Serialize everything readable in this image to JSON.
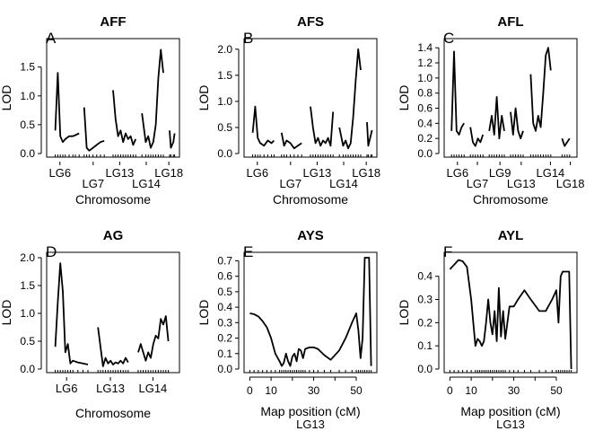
{
  "chart_data": [
    {
      "type": "line",
      "title": "AFF",
      "letter": "A",
      "xlabel": "Chromosome",
      "ylabel": "LOD",
      "ylim": [
        0,
        1.9
      ],
      "yticks": [
        "0.0",
        "0.5",
        "1.0",
        "1.5"
      ],
      "xlim": [
        0,
        10
      ],
      "xtick_labels": [
        "LG6",
        "LG7",
        "LG13",
        "LG14",
        "LG18"
      ],
      "series": [
        {
          "chromosome": "LG6",
          "x": [
            0.4,
            0.6,
            0.8,
            1.0,
            1.2,
            1.5,
            1.8,
            2.0,
            2.3
          ],
          "y": [
            0.4,
            1.4,
            0.3,
            0.2,
            0.25,
            0.3,
            0.3,
            0.32,
            0.35
          ]
        },
        {
          "chromosome": "LG7",
          "x": [
            2.7,
            2.9,
            3.1,
            3.4,
            3.7,
            4.0,
            4.3
          ],
          "y": [
            0.8,
            0.1,
            0.05,
            0.1,
            0.15,
            0.2,
            0.22
          ]
        },
        {
          "chromosome": "LG13",
          "x": [
            5.0,
            5.2,
            5.4,
            5.6,
            5.8,
            6.0,
            6.2,
            6.4,
            6.6,
            6.8
          ],
          "y": [
            1.1,
            0.6,
            0.3,
            0.4,
            0.2,
            0.35,
            0.25,
            0.3,
            0.15,
            0.25
          ]
        },
        {
          "chromosome": "LG14",
          "x": [
            7.3,
            7.6,
            7.8,
            8.0,
            8.2,
            8.4,
            8.6,
            8.8,
            9.0
          ],
          "y": [
            0.7,
            0.2,
            0.3,
            0.1,
            0.2,
            0.5,
            1.3,
            1.8,
            1.4
          ]
        },
        {
          "chromosome": "LG18",
          "x": [
            9.5,
            9.6,
            9.8,
            9.9
          ],
          "y": [
            0.4,
            0.1,
            0.2,
            0.35
          ]
        }
      ]
    },
    {
      "type": "line",
      "title": "AFS",
      "letter": "B",
      "xlabel": "Chromosome",
      "ylabel": "LOD",
      "ylim": [
        0,
        2.1
      ],
      "yticks": [
        "0.0",
        "0.5",
        "1.0",
        "1.5",
        "2.0"
      ],
      "xlim": [
        0,
        10
      ],
      "xtick_labels": [
        "LG6",
        "LG7",
        "LG13",
        "LG14",
        "LG18"
      ],
      "series": [
        {
          "chromosome": "LG6",
          "x": [
            0.4,
            0.6,
            0.8,
            1.0,
            1.3,
            1.6,
            1.9,
            2.1
          ],
          "y": [
            0.4,
            0.9,
            0.3,
            0.2,
            0.15,
            0.25,
            0.2,
            0.25
          ]
        },
        {
          "chromosome": "LG7",
          "x": [
            2.7,
            2.9,
            3.1,
            3.4,
            3.7,
            4.0,
            4.3
          ],
          "y": [
            0.4,
            0.15,
            0.25,
            0.2,
            0.1,
            0.15,
            0.2
          ]
        },
        {
          "chromosome": "LG13",
          "x": [
            5.0,
            5.2,
            5.4,
            5.6,
            5.8,
            6.0,
            6.2,
            6.4,
            6.6,
            6.8
          ],
          "y": [
            0.9,
            0.5,
            0.2,
            0.3,
            0.15,
            0.25,
            0.2,
            0.3,
            0.15,
            0.8
          ]
        },
        {
          "chromosome": "LG14",
          "x": [
            7.3,
            7.6,
            7.8,
            8.0,
            8.2,
            8.4,
            8.6,
            8.8,
            9.0
          ],
          "y": [
            0.5,
            0.15,
            0.25,
            0.1,
            0.2,
            0.7,
            1.4,
            2.0,
            1.6
          ]
        },
        {
          "chromosome": "LG18",
          "x": [
            9.5,
            9.6,
            9.8,
            9.9
          ],
          "y": [
            0.6,
            0.15,
            0.35,
            0.45
          ]
        }
      ]
    },
    {
      "type": "line",
      "title": "AFL",
      "letter": "C",
      "xlabel": "Chromosome",
      "ylabel": "LOD",
      "ylim": [
        0,
        1.45
      ],
      "yticks": [
        "0.0",
        "0.2",
        "0.4",
        "0.6",
        "0.8",
        "1.0",
        "1.2",
        "1.4"
      ],
      "xlim": [
        0,
        10
      ],
      "xtick_labels": [
        "LG6",
        "LG7",
        "LG9",
        "LG13",
        "LG14",
        "LG18"
      ],
      "series": [
        {
          "chromosome": "LG6",
          "x": [
            0.3,
            0.5,
            0.7,
            0.9,
            1.1,
            1.3
          ],
          "y": [
            0.3,
            1.35,
            0.3,
            0.25,
            0.35,
            0.4
          ]
        },
        {
          "chromosome": "LG7",
          "x": [
            1.8,
            2.0,
            2.2,
            2.4,
            2.6,
            2.8
          ],
          "y": [
            0.35,
            0.15,
            0.1,
            0.2,
            0.15,
            0.25
          ]
        },
        {
          "chromosome": "LG9",
          "x": [
            3.3,
            3.5,
            3.7,
            3.9,
            4.1,
            4.3,
            4.5
          ],
          "y": [
            0.3,
            0.5,
            0.25,
            0.75,
            0.2,
            0.5,
            0.3
          ]
        },
        {
          "chromosome": "LG13",
          "x": [
            5.0,
            5.2,
            5.4,
            5.6,
            5.8,
            6.0
          ],
          "y": [
            0.55,
            0.25,
            0.6,
            0.3,
            0.2,
            0.3
          ]
        },
        {
          "chromosome": "LG14",
          "x": [
            6.6,
            6.8,
            7.0,
            7.2,
            7.4,
            7.6,
            7.8,
            8.0,
            8.2
          ],
          "y": [
            1.05,
            0.4,
            0.3,
            0.5,
            0.35,
            0.8,
            1.3,
            1.4,
            1.1
          ]
        },
        {
          "chromosome": "LG18",
          "x": [
            9.1,
            9.3,
            9.5,
            9.7
          ],
          "y": [
            0.2,
            0.1,
            0.15,
            0.2
          ]
        }
      ]
    },
    {
      "type": "line",
      "title": "AG",
      "letter": "D",
      "xlabel": "Chromosome",
      "ylabel": "LOD",
      "ylim": [
        0,
        2.0
      ],
      "yticks": [
        "0.0",
        "0.5",
        "1.0",
        "1.5",
        "2.0"
      ],
      "xlim": [
        0,
        10
      ],
      "xtick_labels": [
        "LG6",
        "LG13",
        "LG14"
      ],
      "series": [
        {
          "chromosome": "LG6",
          "x": [
            0.4,
            0.6,
            0.8,
            1.0,
            1.2,
            1.4,
            1.6,
            1.8,
            2.2,
            2.6,
            3.0
          ],
          "y": [
            0.4,
            1.2,
            1.9,
            1.4,
            0.3,
            0.45,
            0.1,
            0.15,
            0.12,
            0.1,
            0.08
          ]
        },
        {
          "chromosome": "LG13",
          "x": [
            3.8,
            4.0,
            4.2,
            4.4,
            4.6,
            4.8,
            5.0,
            5.2,
            5.4,
            5.6,
            5.8,
            6.0,
            6.2
          ],
          "y": [
            0.75,
            0.4,
            0.05,
            0.2,
            0.1,
            0.15,
            0.08,
            0.12,
            0.1,
            0.15,
            0.1,
            0.2,
            0.12
          ]
        },
        {
          "chromosome": "LG14",
          "x": [
            7.0,
            7.2,
            7.4,
            7.6,
            7.8,
            8.0,
            8.2,
            8.4,
            8.6,
            8.8,
            9.0,
            9.2,
            9.4
          ],
          "y": [
            0.3,
            0.45,
            0.3,
            0.15,
            0.3,
            0.2,
            0.45,
            0.6,
            0.55,
            0.9,
            0.8,
            0.95,
            0.5
          ]
        }
      ]
    },
    {
      "type": "line",
      "title": "AYS",
      "letter": "E",
      "xlabel": "Map position (cM)",
      "sublabel": "LG13",
      "ylabel": "LOD",
      "ylim": [
        0,
        0.72
      ],
      "yticks": [
        "0.0",
        "0.1",
        "0.2",
        "0.3",
        "0.4",
        "0.5",
        "0.6",
        "0.7"
      ],
      "xlim": [
        -1,
        58
      ],
      "xticks": [
        0,
        10,
        20,
        30,
        40,
        50
      ],
      "xtick_labels": [
        "0",
        "10",
        "30",
        "50"
      ],
      "xtick_label_positions": [
        0,
        10,
        30,
        50
      ],
      "series": [
        {
          "chromosome": "LG13",
          "x": [
            0,
            2,
            4,
            6,
            8,
            10,
            12,
            14,
            15,
            16,
            17,
            18,
            19,
            20,
            21,
            22,
            23,
            24,
            25,
            26,
            28,
            30,
            32,
            35,
            38,
            42,
            45,
            48,
            50,
            51,
            52,
            53,
            54,
            55,
            56,
            57
          ],
          "y": [
            0.36,
            0.355,
            0.34,
            0.31,
            0.27,
            0.2,
            0.1,
            0.05,
            0.02,
            0.04,
            0.1,
            0.05,
            0.02,
            0.08,
            0.1,
            0.05,
            0.13,
            0.12,
            0.07,
            0.13,
            0.14,
            0.14,
            0.13,
            0.09,
            0.06,
            0.12,
            0.2,
            0.3,
            0.36,
            0.25,
            0.07,
            0.2,
            0.72,
            0.72,
            0.72,
            0.02
          ]
        }
      ]
    },
    {
      "type": "line",
      "title": "AYL",
      "letter": "F",
      "xlabel": "Map position (cM)",
      "sublabel": "LG13",
      "ylabel": "LOD",
      "ylim": [
        0,
        0.48
      ],
      "yticks": [
        "0.0",
        "0.1",
        "0.2",
        "0.3",
        "0.4"
      ],
      "xlim": [
        -1,
        58
      ],
      "xticks": [
        0,
        10,
        20,
        30,
        40,
        50
      ],
      "xtick_labels": [
        "0",
        "10",
        "30",
        "50"
      ],
      "xtick_label_positions": [
        0,
        10,
        30,
        50
      ],
      "series": [
        {
          "chromosome": "LG13",
          "x": [
            0,
            2,
            4,
            6,
            8,
            10,
            12,
            13,
            14,
            15,
            16,
            17,
            18,
            19,
            20,
            21,
            22,
            23,
            24,
            25,
            26,
            28,
            30,
            32,
            35,
            38,
            42,
            45,
            48,
            50,
            51,
            52,
            53,
            54,
            55,
            56,
            57
          ],
          "y": [
            0.43,
            0.45,
            0.47,
            0.465,
            0.44,
            0.3,
            0.1,
            0.13,
            0.12,
            0.1,
            0.12,
            0.2,
            0.3,
            0.2,
            0.15,
            0.25,
            0.12,
            0.35,
            0.14,
            0.25,
            0.13,
            0.27,
            0.27,
            0.3,
            0.34,
            0.3,
            0.25,
            0.25,
            0.3,
            0.34,
            0.2,
            0.4,
            0.42,
            0.42,
            0.42,
            0.42,
            0.0
          ]
        }
      ]
    }
  ]
}
